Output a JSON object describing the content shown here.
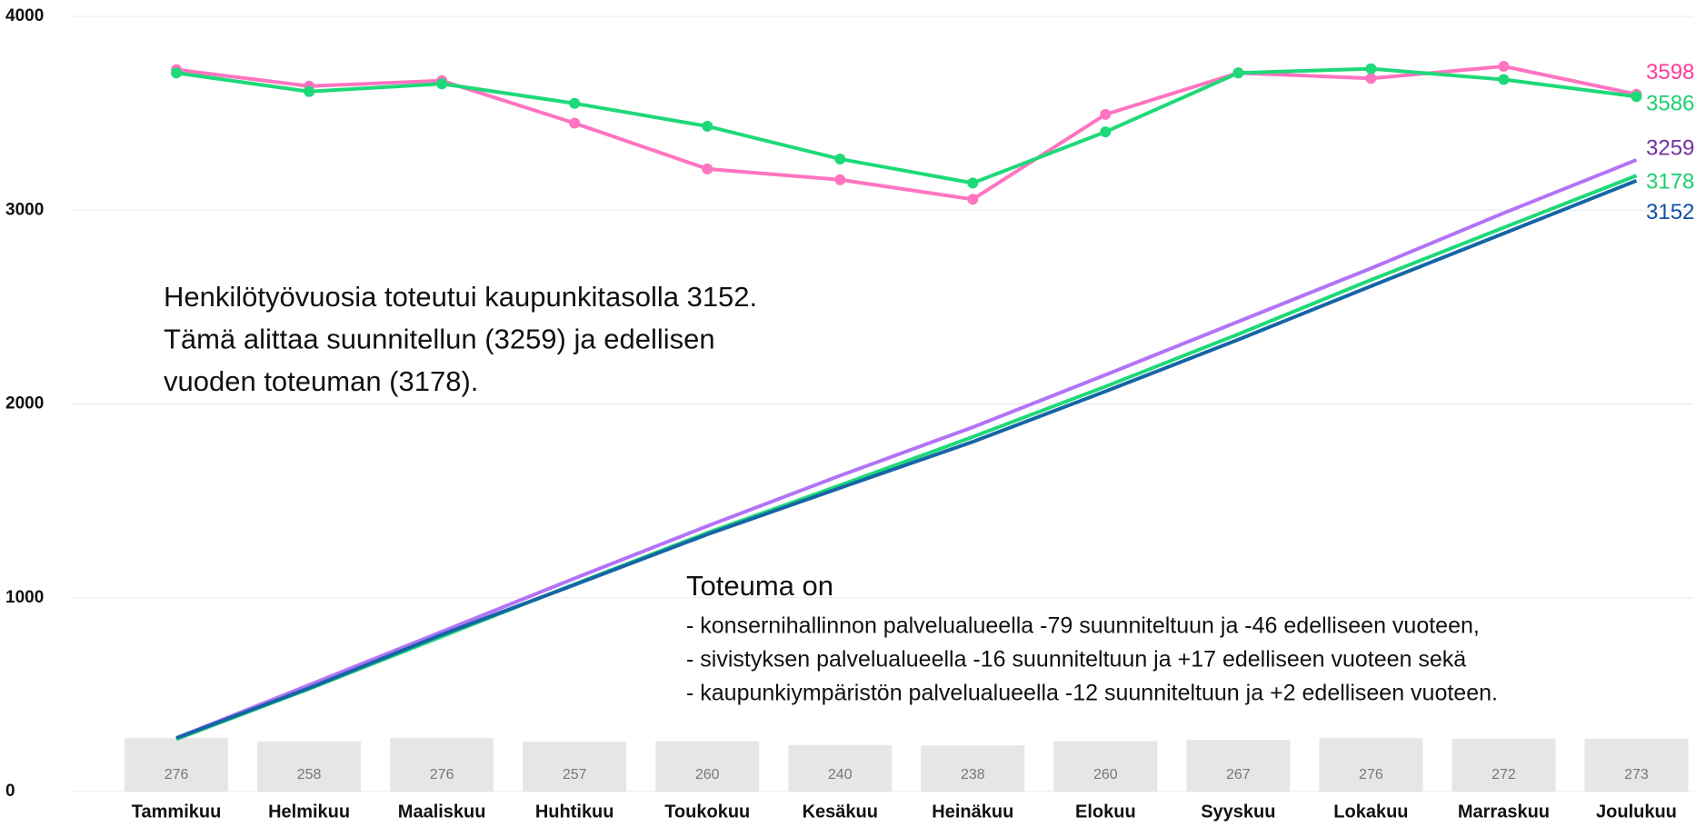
{
  "chart_data": {
    "type": "line",
    "categories": [
      "Tammikuu",
      "Helmikuu",
      "Maaliskuu",
      "Huhtikuu",
      "Toukokuu",
      "Kesäkuu",
      "Heinäkuu",
      "Elokuu",
      "Syyskuu",
      "Lokakuu",
      "Marraskuu",
      "Joulukuu"
    ],
    "ylim": [
      0,
      4000
    ],
    "yticks": [
      0,
      1000,
      2000,
      3000,
      4000
    ],
    "grid": true,
    "series": [
      {
        "type": "bar",
        "color": "#e6e6e6",
        "values": [
          276,
          258,
          276,
          257,
          260,
          240,
          238,
          260,
          267,
          276,
          272,
          273
        ]
      },
      {
        "type": "line",
        "color": "#ff74c0",
        "label_color": "#ff3a9a",
        "markers": true,
        "end_label": true,
        "values": [
          3725,
          3640,
          3668,
          3449,
          3213,
          3157,
          3056,
          3494,
          3708,
          3680,
          3742,
          3598
        ]
      },
      {
        "type": "line",
        "color": "#1ed978",
        "label_color": "#1ecf70",
        "markers": true,
        "end_label": true,
        "values": [
          3708,
          3612,
          3652,
          3551,
          3433,
          3264,
          3140,
          3404,
          3708,
          3730,
          3674,
          3586
        ]
      },
      {
        "type": "line",
        "color": "#b273f7",
        "label_color": "#7030a0",
        "markers": false,
        "end_label": true,
        "values": [
          276,
          550,
          825,
          1100,
          1370,
          1630,
          1880,
          2150,
          2425,
          2700,
          2985,
          3259
        ]
      },
      {
        "type": "line",
        "color": "#1ed978",
        "label_color": "#1ecf70",
        "markers": false,
        "end_label": true,
        "values": [
          270,
          530,
          800,
          1070,
          1335,
          1580,
          1830,
          2090,
          2360,
          2640,
          2910,
          3178
        ]
      },
      {
        "type": "line",
        "color": "#1565a6",
        "label_color": "#1050a8",
        "markers": false,
        "end_label": true,
        "values": [
          276,
          534,
          810,
          1067,
          1327,
          1567,
          1805,
          2065,
          2332,
          2608,
          2880,
          3152
        ]
      }
    ],
    "annotations": [
      {
        "lines": [
          "Henkilötyövuosia toteutui kaupunkitasolla 3152.",
          "Tämä alittaa suunnitellun (3259) ja edellisen",
          "vuoden toteuman (3178)."
        ]
      },
      {
        "lines": [
          "Toteuma on",
          "- konsernihallinnon palvelualueella -79 suunniteltuun ja -46 edelliseen vuoteen,",
          "- sivistyksen palvelualueella -16 suunniteltuun ja +17 edelliseen vuoteen sekä",
          "- kaupunkiympäristön palvelualueella -12 suunniteltuun ja +2 edelliseen vuoteen."
        ]
      }
    ]
  }
}
